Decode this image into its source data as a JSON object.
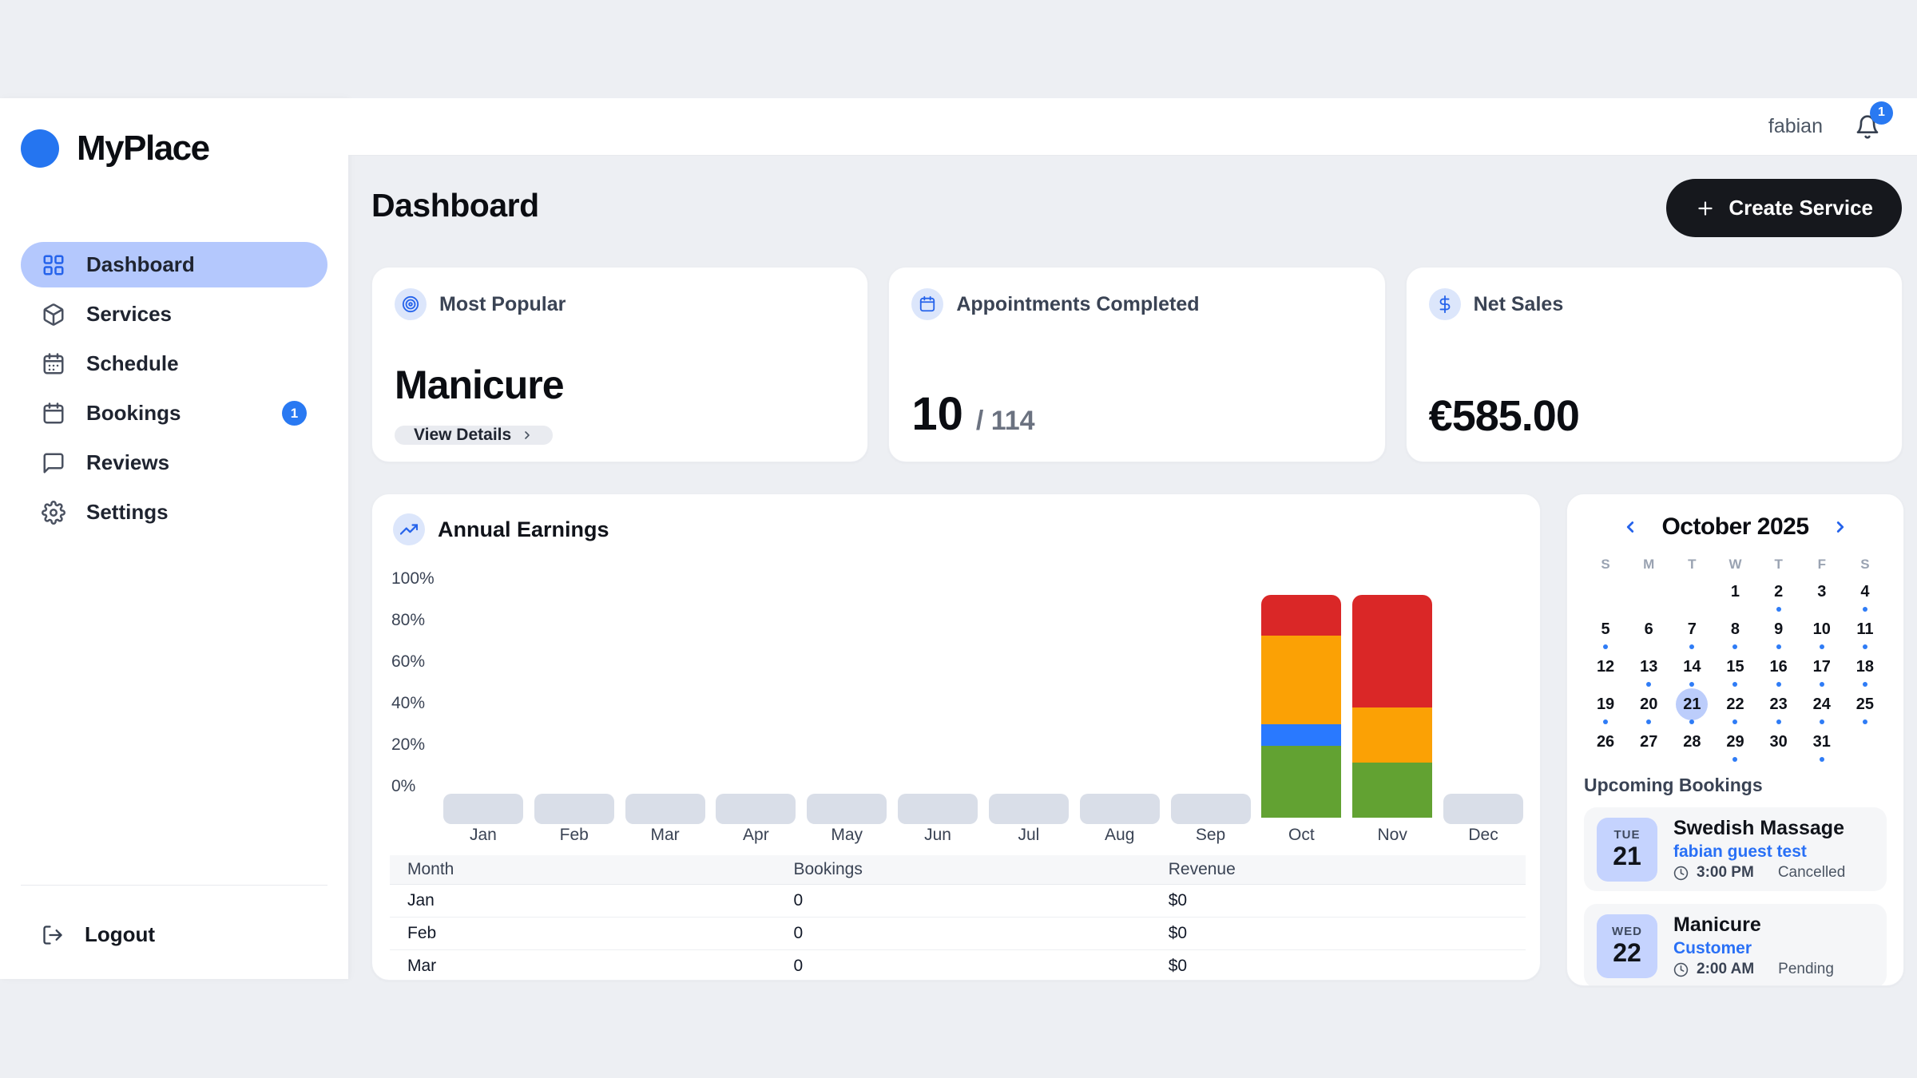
{
  "brand": {
    "name": "MyPlace"
  },
  "topbar": {
    "username": "fabian",
    "notification_count": "1"
  },
  "sidebar": {
    "items": [
      {
        "id": "dashboard",
        "label": "Dashboard",
        "icon": "dashboard-grid-icon",
        "active": true
      },
      {
        "id": "services",
        "label": "Services",
        "icon": "package-icon"
      },
      {
        "id": "schedule",
        "label": "Schedule",
        "icon": "calendar-dots-icon"
      },
      {
        "id": "bookings",
        "label": "Bookings",
        "icon": "calendar-icon",
        "badge": "1"
      },
      {
        "id": "reviews",
        "label": "Reviews",
        "icon": "chat-icon"
      },
      {
        "id": "settings",
        "label": "Settings",
        "icon": "gear-icon"
      }
    ],
    "logout_label": "Logout"
  },
  "page": {
    "title": "Dashboard",
    "create_button": "Create Service"
  },
  "stats": {
    "most_popular": {
      "label": "Most Popular",
      "value": "Manicure",
      "button": "View Details"
    },
    "appointments": {
      "label": "Appointments Completed",
      "completed": "10",
      "total": "/ 114"
    },
    "net_sales": {
      "label": "Net Sales",
      "value": "€585.00"
    }
  },
  "chart_data": {
    "type": "bar",
    "stacked": true,
    "title": "Annual Earnings",
    "categories": [
      "Jan",
      "Feb",
      "Mar",
      "Apr",
      "May",
      "Jun",
      "Jul",
      "Aug",
      "Sep",
      "Oct",
      "Nov",
      "Dec"
    ],
    "y_ticks": [
      "100%",
      "80%",
      "60%",
      "40%",
      "20%",
      "0%"
    ],
    "ylim": [
      0,
      100
    ],
    "unit": "%",
    "grid": false,
    "legend": "none",
    "series": [
      {
        "name": "segment-green",
        "color": "#62a232",
        "values": [
          0,
          0,
          0,
          0,
          0,
          0,
          0,
          0,
          0,
          30,
          23,
          0
        ]
      },
      {
        "name": "segment-blue",
        "color": "#2979ff",
        "values": [
          0,
          0,
          0,
          0,
          0,
          0,
          0,
          0,
          0,
          9,
          0,
          0
        ]
      },
      {
        "name": "segment-orange",
        "color": "#fba105",
        "values": [
          0,
          0,
          0,
          0,
          0,
          0,
          0,
          0,
          0,
          37,
          23,
          0
        ]
      },
      {
        "name": "segment-red",
        "color": "#da2727",
        "values": [
          0,
          0,
          0,
          0,
          0,
          0,
          0,
          0,
          0,
          17,
          47,
          0
        ]
      }
    ],
    "empty_placeholder_color": "#d9dee8",
    "table": {
      "columns": [
        "Month",
        "Bookings",
        "Revenue"
      ],
      "rows": [
        [
          "Jan",
          "0",
          "$0"
        ],
        [
          "Feb",
          "0",
          "$0"
        ],
        [
          "Mar",
          "0",
          "$0"
        ]
      ]
    }
  },
  "calendar": {
    "title": "October 2025",
    "weekdays": [
      "S",
      "M",
      "T",
      "W",
      "T",
      "F",
      "S"
    ],
    "weeks": [
      [
        null,
        null,
        null,
        1,
        2,
        3,
        4
      ],
      [
        5,
        6,
        7,
        8,
        9,
        10,
        11
      ],
      [
        12,
        13,
        14,
        15,
        16,
        17,
        18
      ],
      [
        19,
        20,
        21,
        22,
        23,
        24,
        25
      ],
      [
        26,
        27,
        28,
        29,
        30,
        31,
        null
      ]
    ],
    "dotted_days": [
      2,
      4,
      5,
      7,
      8,
      9,
      10,
      11,
      13,
      14,
      15,
      16,
      17,
      18,
      19,
      20,
      21,
      22,
      23,
      24,
      25,
      29,
      31
    ],
    "selected_day": 21
  },
  "upcoming": {
    "label": "Upcoming Bookings",
    "bookings": [
      {
        "weekday": "TUE",
        "day": "21",
        "title": "Swedish Massage",
        "customer": "fabian guest test",
        "time": "3:00 PM",
        "status": "Cancelled"
      },
      {
        "weekday": "WED",
        "day": "22",
        "title": "Manicure",
        "customer": "Customer",
        "time": "2:00 AM",
        "status": "Pending"
      }
    ]
  },
  "colors": {
    "brand_blue": "#2575f0",
    "active_nav_bg": "#b4c8fd",
    "badge_blue": "#2979f2",
    "dark_button": "#16181d",
    "link_blue": "#2970f6",
    "page_bg": "#edeff3"
  }
}
